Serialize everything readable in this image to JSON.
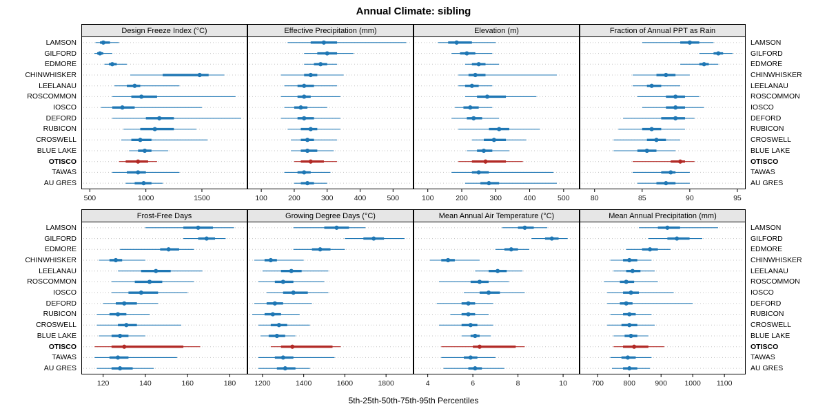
{
  "title": "Annual Climate: sibling",
  "xlabel": "5th-25th-50th-75th-95th Percentiles",
  "sites": [
    "LAMSON",
    "GILFORD",
    "EDMORE",
    "CHINWHISKER",
    "LEELANAU",
    "ROSCOMMON",
    "IOSCO",
    "DEFORD",
    "RUBICON",
    "CROSWELL",
    "BLUE LAKE",
    "OTISCO",
    "TAWAS",
    "AU GRES"
  ],
  "highlight_site": "OTISCO",
  "colors": {
    "series": "#1f77b4",
    "highlight": "#b22a26",
    "strip_bg": "#e6e6e6",
    "grid": "#c3c3c3",
    "panel_border": "#000000"
  },
  "chart_data": {
    "type": "dotplot-percentiles",
    "percentile_labels": [
      "5th",
      "25th",
      "50th",
      "75th",
      "95th"
    ],
    "panels": [
      {
        "title": "Design Freeze Index (°C)",
        "xlim": [
          430,
          1900
        ],
        "ticks": [
          500,
          1000,
          1500
        ],
        "values": [
          [
            550,
            590,
            620,
            680,
            760
          ],
          [
            540,
            565,
            590,
            620,
            700
          ],
          [
            630,
            670,
            700,
            740,
            830
          ],
          [
            860,
            1150,
            1480,
            1560,
            1700
          ],
          [
            720,
            830,
            900,
            950,
            1300
          ],
          [
            700,
            870,
            960,
            1100,
            1800
          ],
          [
            600,
            700,
            790,
            900,
            1500
          ],
          [
            700,
            1000,
            1120,
            1250,
            1850
          ],
          [
            800,
            950,
            1080,
            1250,
            1450
          ],
          [
            780,
            870,
            950,
            1050,
            1550
          ],
          [
            850,
            930,
            990,
            1050,
            1200
          ],
          [
            760,
            820,
            930,
            1020,
            1100
          ],
          [
            700,
            830,
            930,
            1000,
            1300
          ],
          [
            820,
            900,
            980,
            1050,
            1150
          ]
        ]
      },
      {
        "title": "Effective Precipitation (mm)",
        "xlim": [
          60,
          560
        ],
        "ticks": [
          100,
          200,
          300,
          400,
          500
        ],
        "values": [
          [
            180,
            250,
            290,
            330,
            540
          ],
          [
            230,
            270,
            300,
            330,
            380
          ],
          [
            230,
            260,
            280,
            300,
            330
          ],
          [
            160,
            230,
            250,
            270,
            350
          ],
          [
            170,
            210,
            230,
            260,
            330
          ],
          [
            160,
            210,
            230,
            250,
            340
          ],
          [
            170,
            200,
            220,
            240,
            300
          ],
          [
            160,
            210,
            230,
            260,
            340
          ],
          [
            180,
            220,
            250,
            270,
            340
          ],
          [
            190,
            220,
            240,
            260,
            330
          ],
          [
            190,
            220,
            240,
            270,
            320
          ],
          [
            200,
            220,
            250,
            290,
            330
          ],
          [
            170,
            210,
            230,
            250,
            310
          ],
          [
            200,
            220,
            240,
            260,
            300
          ]
        ]
      },
      {
        "title": "Elevation (m)",
        "xlim": [
          60,
          545
        ],
        "ticks": [
          100,
          200,
          300,
          400,
          500
        ],
        "values": [
          [
            130,
            160,
            185,
            230,
            300
          ],
          [
            170,
            195,
            215,
            240,
            290
          ],
          [
            210,
            230,
            250,
            270,
            310
          ],
          [
            190,
            220,
            240,
            270,
            480
          ],
          [
            190,
            210,
            230,
            250,
            290
          ],
          [
            210,
            245,
            275,
            330,
            420
          ],
          [
            180,
            205,
            225,
            250,
            290
          ],
          [
            170,
            215,
            235,
            260,
            310
          ],
          [
            190,
            280,
            310,
            340,
            430
          ],
          [
            230,
            265,
            295,
            330,
            390
          ],
          [
            215,
            245,
            265,
            290,
            340
          ],
          [
            190,
            230,
            270,
            330,
            380
          ],
          [
            170,
            230,
            250,
            280,
            470
          ],
          [
            210,
            255,
            280,
            310,
            480
          ]
        ]
      },
      {
        "title": "Fraction of Annual PPT as Rain",
        "xlim": [
          78.5,
          95.8
        ],
        "ticks": [
          80,
          85,
          90,
          95
        ],
        "values": [
          [
            85,
            89,
            90,
            91,
            92.5
          ],
          [
            91,
            92.5,
            93,
            93.5,
            94.5
          ],
          [
            89,
            91,
            91.5,
            92,
            93
          ],
          [
            84,
            86.5,
            87.5,
            88.5,
            90
          ],
          [
            84,
            85.5,
            86,
            87,
            89
          ],
          [
            84.5,
            87.5,
            88.5,
            89.5,
            91
          ],
          [
            85,
            87.5,
            88.5,
            89.5,
            91.5
          ],
          [
            83,
            87,
            88.5,
            89.5,
            90.5
          ],
          [
            82.5,
            85,
            86,
            87,
            89.5
          ],
          [
            82,
            85.5,
            86.5,
            87.5,
            89
          ],
          [
            82,
            84.5,
            85.5,
            86.5,
            88.5
          ],
          [
            84,
            88,
            89,
            89.5,
            90.5
          ],
          [
            84,
            87,
            88,
            88.5,
            90
          ],
          [
            84.5,
            86.5,
            87.5,
            88.5,
            90
          ]
        ]
      },
      {
        "title": "Frost-Free Days",
        "xlim": [
          110,
          188
        ],
        "ticks": [
          120,
          140,
          160,
          180
        ],
        "values": [
          [
            140,
            158,
            165,
            172,
            182
          ],
          [
            158,
            165,
            169,
            173,
            178
          ],
          [
            128,
            147,
            151,
            156,
            163
          ],
          [
            118,
            123,
            126,
            129,
            140
          ],
          [
            127,
            138,
            145,
            152,
            167
          ],
          [
            124,
            135,
            142,
            148,
            163
          ],
          [
            124,
            132,
            138,
            146,
            160
          ],
          [
            120,
            126,
            130,
            136,
            146
          ],
          [
            117,
            123,
            127,
            131,
            142
          ],
          [
            117,
            127,
            131,
            136,
            157
          ],
          [
            118,
            124,
            128,
            132,
            140
          ],
          [
            116,
            124,
            130,
            158,
            166
          ],
          [
            116,
            123,
            127,
            132,
            155
          ],
          [
            117,
            124,
            128,
            134,
            144
          ]
        ]
      },
      {
        "title": "Growing Degree Days (°C)",
        "xlim": [
          1130,
          1930
        ],
        "ticks": [
          1200,
          1400,
          1600,
          1800
        ],
        "values": [
          [
            1350,
            1500,
            1560,
            1620,
            1700
          ],
          [
            1600,
            1690,
            1740,
            1790,
            1890
          ],
          [
            1350,
            1440,
            1480,
            1530,
            1600
          ],
          [
            1160,
            1210,
            1240,
            1270,
            1400
          ],
          [
            1200,
            1290,
            1340,
            1390,
            1520
          ],
          [
            1180,
            1260,
            1300,
            1350,
            1500
          ],
          [
            1220,
            1300,
            1350,
            1420,
            1520
          ],
          [
            1160,
            1220,
            1260,
            1300,
            1440
          ],
          [
            1150,
            1210,
            1250,
            1290,
            1380
          ],
          [
            1180,
            1240,
            1280,
            1320,
            1430
          ],
          [
            1190,
            1230,
            1270,
            1310,
            1360
          ],
          [
            1240,
            1290,
            1345,
            1540,
            1580
          ],
          [
            1180,
            1260,
            1300,
            1350,
            1550
          ],
          [
            1180,
            1270,
            1310,
            1360,
            1430
          ]
        ]
      },
      {
        "title": "Mean Annual Air Temperature (°C)",
        "xlim": [
          3.4,
          10.7
        ],
        "ticks": [
          4,
          6,
          8,
          10
        ],
        "values": [
          [
            7.3,
            8.0,
            8.3,
            8.7,
            9.3
          ],
          [
            8.6,
            9.2,
            9.5,
            9.8,
            10.2
          ],
          [
            7.0,
            7.4,
            7.7,
            8.0,
            8.5
          ],
          [
            4.1,
            4.6,
            4.9,
            5.2,
            6.3
          ],
          [
            6.1,
            6.7,
            7.1,
            7.5,
            8.2
          ],
          [
            4.5,
            5.9,
            6.3,
            6.7,
            7.6
          ],
          [
            5.6,
            6.3,
            6.7,
            7.2,
            8.3
          ],
          [
            4.4,
            5.5,
            5.8,
            6.1,
            6.9
          ],
          [
            5.0,
            5.5,
            5.8,
            6.1,
            6.7
          ],
          [
            4.5,
            5.5,
            5.9,
            6.2,
            6.9
          ],
          [
            5.5,
            5.9,
            6.1,
            6.3,
            6.8
          ],
          [
            4.6,
            6.0,
            6.3,
            7.9,
            8.3
          ],
          [
            4.6,
            5.6,
            5.9,
            6.2,
            7.0
          ],
          [
            4.7,
            5.8,
            6.1,
            6.4,
            7.4
          ]
        ]
      },
      {
        "title": "Mean Annual Precipitation (mm)",
        "xlim": [
          645,
          1165
        ],
        "ticks": [
          700,
          800,
          900,
          1000,
          1100
        ],
        "values": [
          [
            830,
            890,
            920,
            960,
            1080
          ],
          [
            860,
            920,
            950,
            990,
            1030
          ],
          [
            790,
            840,
            865,
            890,
            930
          ],
          [
            740,
            780,
            800,
            825,
            870
          ],
          [
            750,
            790,
            810,
            835,
            880
          ],
          [
            720,
            770,
            790,
            815,
            890
          ],
          [
            730,
            780,
            805,
            830,
            940
          ],
          [
            730,
            770,
            790,
            810,
            1000
          ],
          [
            740,
            780,
            800,
            820,
            870
          ],
          [
            730,
            775,
            800,
            825,
            880
          ],
          [
            750,
            785,
            805,
            825,
            860
          ],
          [
            750,
            780,
            815,
            860,
            910
          ],
          [
            740,
            775,
            795,
            820,
            870
          ],
          [
            745,
            780,
            800,
            825,
            865
          ]
        ]
      }
    ]
  }
}
